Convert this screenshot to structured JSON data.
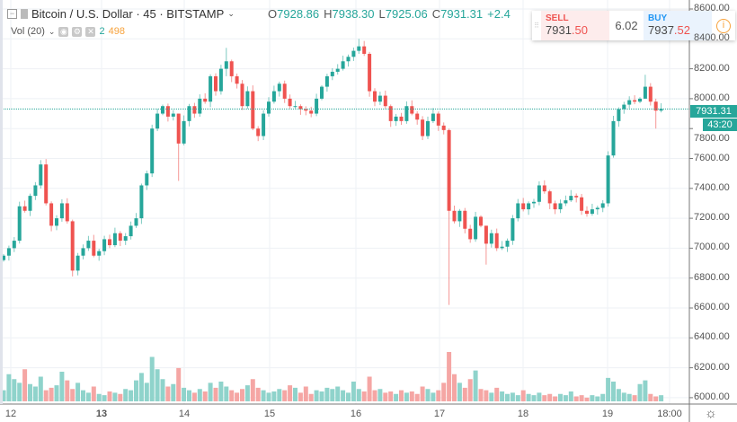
{
  "header": {
    "symbol": "Bitcoin / U.S. Dollar · 45 · BITSTAMP",
    "open_label": "O",
    "open": "7928.86",
    "high_label": "H",
    "high": "7938.30",
    "low_label": "L",
    "low": "7925.06",
    "close_label": "C",
    "close": "7931.31",
    "change": "+2.4"
  },
  "volume_legend": {
    "label": "Vol (20)",
    "ma": "2",
    "value": "498"
  },
  "trade_panel": {
    "sell_label": "SELL",
    "sell_main": "7931",
    "sell_big": ".50",
    "spread": "6.02",
    "buy_label": "BUY",
    "buy_main": "7937",
    "buy_big": ".52"
  },
  "price_axis": {
    "ticks": [
      "8600.00",
      "8400.00",
      "8200.00",
      "8000.00",
      "7800.00",
      "7600.00",
      "7400.00",
      "7200.00",
      "7000.00",
      "6800.00",
      "6600.00",
      "6400.00",
      "6200.00",
      "6000.00"
    ],
    "current_price": "7931.31",
    "countdown": "43:20"
  },
  "time_axis": {
    "ticks": [
      "12",
      "13",
      "14",
      "15",
      "16",
      "17",
      "18",
      "19",
      "18:00"
    ]
  },
  "colors": {
    "up": "#26a69a",
    "down": "#ef5350",
    "up_vol": "#8fd3cb",
    "down_vol": "#f5a6a4"
  },
  "chart_data": {
    "type": "candlestick",
    "interval": "45",
    "ylim": [
      6000,
      8600
    ],
    "closes": [
      6950,
      7000,
      7050,
      7280,
      7250,
      7350,
      7420,
      7560,
      7300,
      7150,
      7200,
      7300,
      7180,
      6850,
      6950,
      7000,
      7050,
      6950,
      6980,
      7060,
      7020,
      7100,
      7050,
      7080,
      7150,
      7200,
      7420,
      7500,
      7800,
      7900,
      7950,
      7880,
      7900,
      7700,
      7850,
      7950,
      7900,
      8000,
      7980,
      8150,
      8050,
      8200,
      8250,
      8150,
      8100,
      7950,
      8050,
      7800,
      7750,
      7900,
      7980,
      8050,
      8100,
      8000,
      7950,
      7950,
      7930,
      7920,
      7900,
      8000,
      8080,
      8150,
      8180,
      8200,
      8250,
      8280,
      8320,
      8350,
      8300,
      8050,
      7980,
      8020,
      7950,
      7850,
      7880,
      7850,
      7950,
      7900,
      7860,
      7750,
      7850,
      7900,
      7820,
      7790,
      7250,
      7180,
      7250,
      7130,
      7060,
      7210,
      7150,
      7030,
      7100,
      7000,
      7010,
      7050,
      7200,
      7300,
      7260,
      7300,
      7310,
      7420,
      7380,
      7300,
      7260,
      7300,
      7320,
      7350,
      7340,
      7250,
      7230,
      7260,
      7270,
      7300,
      7620,
      7850,
      7930,
      7960,
      7990,
      7980,
      8000,
      8080,
      7980,
      7920,
      7931.31
    ],
    "first_open": 6920,
    "wick_extremes": {
      "33": [
        7900,
        7450
      ],
      "42": [
        8340,
        8150
      ],
      "67": [
        8400,
        8300
      ],
      "84": [
        7800,
        6620
      ],
      "91": [
        7150,
        6890
      ],
      "121": [
        8160,
        8000
      ],
      "123": [
        8000,
        7800
      ]
    },
    "volume": [
      900,
      2200,
      1800,
      1500,
      2600,
      1400,
      1200,
      2000,
      900,
      1100,
      1300,
      2400,
      1700,
      1000,
      1500,
      900,
      700,
      1200,
      600,
      500,
      800,
      700,
      600,
      1000,
      900,
      1700,
      2300,
      1500,
      3600,
      2600,
      1800,
      1200,
      1400,
      2700,
      1100,
      900,
      700,
      1000,
      800,
      1500,
      1100,
      1600,
      1200,
      900,
      700,
      1000,
      1300,
      1800,
      1100,
      900,
      700,
      800,
      1000,
      900,
      1300,
      1100,
      700,
      1200,
      600,
      900,
      800,
      1100,
      1000,
      1200,
      900,
      700,
      1600,
      1000,
      800,
      2000,
      900,
      1000,
      700,
      800,
      600,
      900,
      700,
      800,
      600,
      1200,
      1000,
      700,
      900,
      1500,
      4000,
      2200,
      1500,
      1100,
      1800,
      2500,
      1000,
      900,
      700,
      1100,
      800,
      600,
      700,
      500,
      900,
      600,
      500,
      700,
      500,
      600,
      400,
      600,
      500,
      800,
      400,
      500,
      300,
      500,
      400,
      600,
      1900,
      1600,
      1000,
      700,
      600,
      500,
      1400,
      1700,
      600,
      400,
      498
    ]
  }
}
